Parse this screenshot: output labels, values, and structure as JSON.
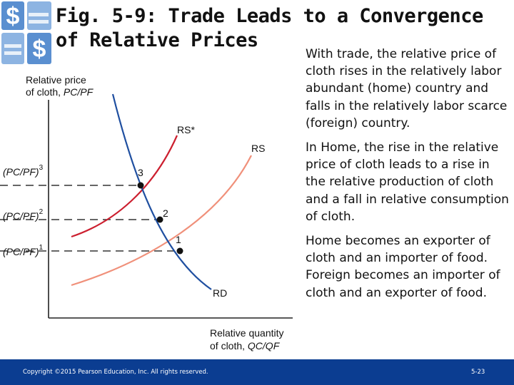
{
  "title": {
    "line1": "Fig. 5-9:  Trade Leads to a Convergence",
    "line2": "of Relative Prices"
  },
  "bullets": [
    "With trade, the relative price of cloth rises in the relatively labor abundant (home) country and falls in the relatively labor scarce (foreign) country.",
    "In Home, the rise in the relative price of cloth leads to a rise in the relative production of cloth and a fall in relative consumption of cloth.",
    "Home becomes an exporter of cloth and an importer of food. Foreign becomes an importer of cloth and an exporter of food."
  ],
  "graph": {
    "y_axis_label_line1": "Relative price",
    "y_axis_label_line2_prefix": "of cloth, ",
    "y_axis_label_var": "PC/PF",
    "x_axis_label_line1": "Relative quantity",
    "x_axis_label_line2_prefix": "of cloth, ",
    "x_axis_label_var": "QC/QF",
    "curves": {
      "rs_star": "RS*",
      "rs": "RS",
      "rd": "RD"
    },
    "points": [
      "1",
      "2",
      "3"
    ],
    "price_levels": [
      {
        "label": "(PC/PF)",
        "superscript": "3"
      },
      {
        "label": "(PC/PF)",
        "superscript": "2"
      },
      {
        "label": "(PC/PF)",
        "superscript": "1"
      }
    ]
  },
  "footer": {
    "copyright": "Copyright ©2015 Pearson Education, Inc. All rights reserved.",
    "slide_number": "5-23"
  },
  "colors": {
    "footer_bg": "#0b3d91",
    "rs_star": "#cc1f2f",
    "rs": "#f0907a",
    "rd": "#1f4fa0"
  }
}
